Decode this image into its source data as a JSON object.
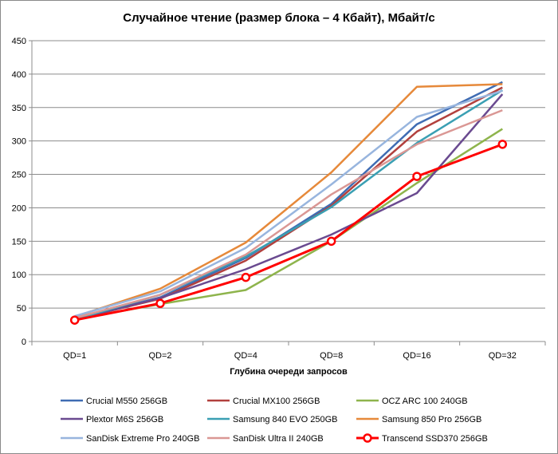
{
  "chart_data": {
    "type": "line",
    "title": "Случайное чтение (размер блока – 4 Кбайт), Мбайт/с",
    "xlabel": "Глубина очереди запросов",
    "ylabel": "",
    "categories": [
      "QD=1",
      "QD=2",
      "QD=4",
      "QD=8",
      "QD=16",
      "QD=32"
    ],
    "ylim": [
      0,
      450
    ],
    "yticks": [
      0,
      50,
      100,
      150,
      200,
      250,
      300,
      350,
      400,
      450
    ],
    "grid": "horizontal",
    "legend_position": "bottom",
    "series": [
      {
        "name": "Crucial M550 256GB",
        "color": "#3f6cb3",
        "values": [
          33,
          66,
          125,
          206,
          325,
          388
        ]
      },
      {
        "name": "Crucial MX100 256GB",
        "color": "#b2403d",
        "values": [
          33,
          64,
          121,
          203,
          314,
          380
        ]
      },
      {
        "name": "OCZ ARC 100 240GB",
        "color": "#8eb44c",
        "values": [
          33,
          56,
          77,
          150,
          237,
          318
        ]
      },
      {
        "name": "Plextor M6S 256GB",
        "color": "#6a4a90",
        "values": [
          33,
          65,
          108,
          160,
          222,
          370
        ]
      },
      {
        "name": "Samsung 840 EVO 250GB",
        "color": "#3a9fb3",
        "values": [
          33,
          70,
          127,
          201,
          297,
          376
        ]
      },
      {
        "name": "Samsung 850 Pro 256GB",
        "color": "#e6893a",
        "values": [
          37,
          79,
          148,
          253,
          381,
          385
        ]
      },
      {
        "name": "SanDisk Extreme Pro 240GB",
        "color": "#98b5de",
        "values": [
          38,
          75,
          140,
          235,
          336,
          375
        ]
      },
      {
        "name": "SanDisk Ultra II 240GB",
        "color": "#da9794",
        "values": [
          35,
          70,
          130,
          220,
          295,
          346
        ]
      },
      {
        "name": "Transcend SSD370 256GB",
        "color": "#ff0000",
        "values": [
          32,
          57,
          96,
          150,
          247,
          295
        ],
        "markers": true
      }
    ]
  }
}
